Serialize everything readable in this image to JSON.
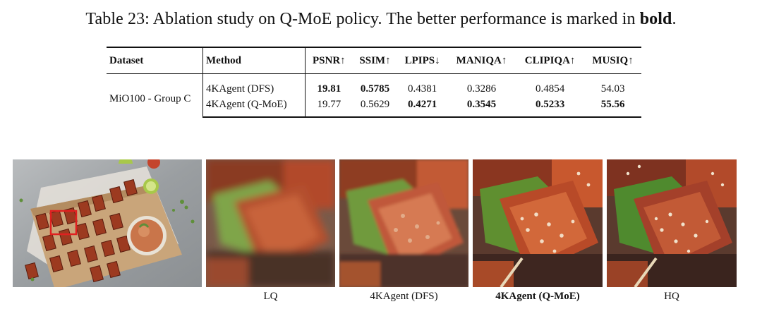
{
  "caption": {
    "prefix": "Table 23: Ablation study on Q-MoE policy. The better performance is marked in",
    "bold_word": "bold",
    "suffix": "."
  },
  "table": {
    "headers": [
      "Dataset",
      "Method",
      "PSNR↑",
      "SSIM↑",
      "LPIPS↓",
      "MANIQA↑",
      "CLIPIQA↑",
      "MUSIQ↑"
    ],
    "dataset": "MiO100 - Group C",
    "rows": [
      {
        "method": "4KAgent (DFS)",
        "psnr": "19.81",
        "ssim": "0.5785",
        "lpips": "0.4381",
        "maniqa": "0.3286",
        "clipiqa": "0.4854",
        "musiq": "54.03"
      },
      {
        "method": "4KAgent (Q-MoE)",
        "psnr": "19.77",
        "ssim": "0.5629",
        "lpips": "0.4271",
        "maniqa": "0.3545",
        "clipiqa": "0.5233",
        "musiq": "55.56"
      }
    ]
  },
  "figure": {
    "labels": [
      "LQ",
      "4KAgent (DFS)",
      "4KAgent (Q-MoE)",
      "HQ"
    ]
  },
  "colors": {
    "text": "#111111",
    "tempeh": "#b8482a",
    "tempeh_dark": "#6e2415",
    "board": "#c7a77f",
    "background_gray": "#9da1a4",
    "highlight_box": "#e02020",
    "leaf": "#5f8f3a"
  }
}
